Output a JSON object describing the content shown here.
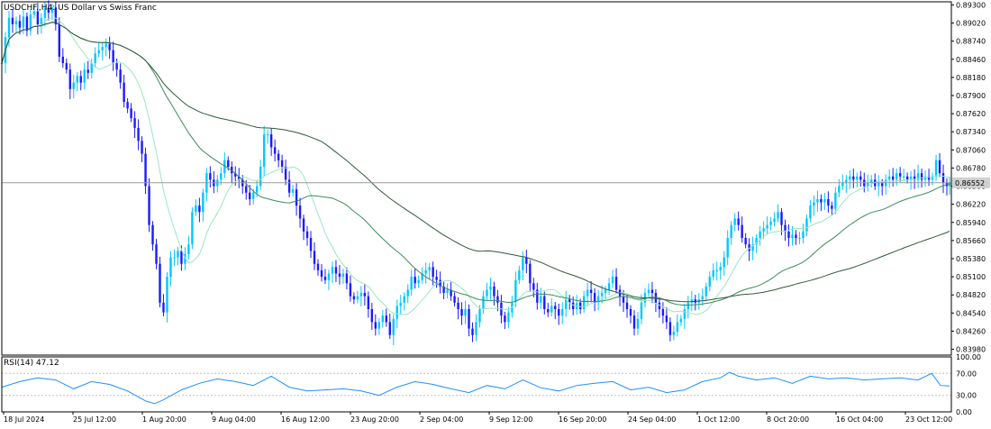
{
  "window": {
    "symbol_label": "USDCHF.,H4:  US Dollar vs Swiss Franc",
    "last_price_label": "0.86552"
  },
  "rsi_panel": {
    "label": "RSI(14) 47.12",
    "levels": [
      "100.00",
      "70.00",
      "30.00",
      "0.00"
    ]
  },
  "colors": {
    "background": "#ffffff",
    "bull_candle": "#00c8ff",
    "bear_candle": "#1a1aff",
    "ma_fast": "#9be6c0",
    "ma_mid": "#3c8c5a",
    "ma_slow": "#2f5a3c",
    "rsi_line": "#1e90ff",
    "level_line": "#c0c0c0",
    "axis": "#000000"
  },
  "chart_data": [
    {
      "type": "candlestick",
      "title": "USDCHF.,H4:  US Dollar vs Swiss Franc",
      "ylim": [
        0.8389,
        0.8932
      ],
      "yticks": [
        "0.89300",
        "0.89020",
        "0.88740",
        "0.88460",
        "0.88180",
        "0.87900",
        "0.87620",
        "0.87340",
        "0.87060",
        "0.86780",
        "0.86500",
        "0.86220",
        "0.85940",
        "0.85660",
        "0.85380",
        "0.85100",
        "0.84820",
        "0.84540",
        "0.84260",
        "0.83980"
      ],
      "xticks": [
        "18 Jul 2024",
        "25 Jul 12:00",
        "1 Aug 20:00",
        "9 Aug 04:00",
        "16 Aug 12:00",
        "23 Aug 20:00",
        "2 Sep 04:00",
        "9 Sep 12:00",
        "16 Sep 20:00",
        "24 Sep 04:00",
        "1 Oct 12:00",
        "8 Oct 20:00",
        "16 Oct 04:00",
        "23 Oct 12:00"
      ],
      "current_price": 0.86552,
      "close_series": [
        [
          0,
          0.884
        ],
        [
          4,
          0.888
        ],
        [
          8,
          0.891
        ],
        [
          12,
          0.89
        ],
        [
          16,
          0.8905
        ],
        [
          20,
          0.8895
        ],
        [
          24,
          0.8912
        ],
        [
          28,
          0.889
        ],
        [
          32,
          0.8915
        ],
        [
          36,
          0.892
        ],
        [
          40,
          0.89
        ],
        [
          44,
          0.891
        ],
        [
          48,
          0.8925
        ],
        [
          52,
          0.8918
        ],
        [
          56,
          0.8926
        ],
        [
          60,
          0.89
        ],
        [
          64,
          0.885
        ],
        [
          68,
          0.884
        ],
        [
          72,
          0.883
        ],
        [
          76,
          0.88
        ],
        [
          80,
          0.881
        ],
        [
          84,
          0.882
        ],
        [
          88,
          0.881
        ],
        [
          92,
          0.883
        ],
        [
          96,
          0.8825
        ],
        [
          100,
          0.884
        ],
        [
          104,
          0.8855
        ],
        [
          108,
          0.886
        ],
        [
          112,
          0.8865
        ],
        [
          116,
          0.887
        ],
        [
          120,
          0.886
        ],
        [
          124,
          0.884
        ],
        [
          128,
          0.883
        ],
        [
          132,
          0.881
        ],
        [
          136,
          0.878
        ],
        [
          140,
          0.877
        ],
        [
          144,
          0.8755
        ],
        [
          148,
          0.874
        ],
        [
          152,
          0.872
        ],
        [
          156,
          0.87
        ],
        [
          160,
          0.865
        ],
        [
          164,
          0.859
        ],
        [
          168,
          0.856
        ],
        [
          172,
          0.853
        ],
        [
          176,
          0.847
        ],
        [
          180,
          0.8455
        ],
        [
          184,
          0.851
        ],
        [
          188,
          0.854
        ],
        [
          192,
          0.854
        ],
        [
          196,
          0.855
        ],
        [
          200,
          0.853
        ],
        [
          204,
          0.8545
        ],
        [
          208,
          0.856
        ],
        [
          212,
          0.861
        ],
        [
          216,
          0.862
        ],
        [
          220,
          0.861
        ],
        [
          224,
          0.864
        ],
        [
          228,
          0.867
        ],
        [
          232,
          0.866
        ],
        [
          236,
          0.865
        ],
        [
          240,
          0.866
        ],
        [
          244,
          0.867
        ],
        [
          248,
          0.869
        ],
        [
          252,
          0.868
        ],
        [
          256,
          0.867
        ],
        [
          260,
          0.8665
        ],
        [
          264,
          0.866
        ],
        [
          268,
          0.865
        ],
        [
          272,
          0.864
        ],
        [
          276,
          0.863
        ],
        [
          280,
          0.864
        ],
        [
          284,
          0.865
        ],
        [
          288,
          0.868
        ],
        [
          292,
          0.873
        ],
        [
          296,
          0.873
        ],
        [
          300,
          0.871
        ],
        [
          304,
          0.87
        ],
        [
          308,
          0.869
        ],
        [
          312,
          0.868
        ],
        [
          316,
          0.866
        ],
        [
          320,
          0.864
        ],
        [
          324,
          0.8645
        ],
        [
          328,
          0.862
        ],
        [
          332,
          0.86
        ],
        [
          336,
          0.858
        ],
        [
          340,
          0.857
        ],
        [
          344,
          0.855
        ],
        [
          348,
          0.853
        ],
        [
          352,
          0.852
        ],
        [
          356,
          0.851
        ],
        [
          360,
          0.8505
        ],
        [
          364,
          0.8515
        ],
        [
          368,
          0.8525
        ],
        [
          372,
          0.8515
        ],
        [
          376,
          0.851
        ],
        [
          380,
          0.8515
        ],
        [
          384,
          0.85
        ],
        [
          388,
          0.848
        ],
        [
          392,
          0.8475
        ],
        [
          396,
          0.848
        ],
        [
          400,
          0.8485
        ],
        [
          404,
          0.848
        ],
        [
          408,
          0.846
        ],
        [
          412,
          0.844
        ],
        [
          416,
          0.843
        ],
        [
          420,
          0.844
        ],
        [
          424,
          0.845
        ],
        [
          428,
          0.844
        ],
        [
          432,
          0.842
        ],
        [
          436,
          0.8445
        ],
        [
          440,
          0.8465
        ],
        [
          444,
          0.847
        ],
        [
          448,
          0.848
        ],
        [
          452,
          0.849
        ],
        [
          456,
          0.851
        ],
        [
          460,
          0.85
        ],
        [
          464,
          0.8505
        ],
        [
          468,
          0.8515
        ],
        [
          472,
          0.852
        ],
        [
          476,
          0.8525
        ],
        [
          480,
          0.851
        ],
        [
          484,
          0.8505
        ],
        [
          488,
          0.8495
        ],
        [
          492,
          0.8485
        ],
        [
          496,
          0.849
        ],
        [
          500,
          0.848
        ],
        [
          504,
          0.847
        ],
        [
          508,
          0.846
        ],
        [
          512,
          0.845
        ],
        [
          516,
          0.846
        ],
        [
          520,
          0.843
        ],
        [
          524,
          0.842
        ],
        [
          528,
          0.844
        ],
        [
          532,
          0.846
        ],
        [
          536,
          0.848
        ],
        [
          540,
          0.849
        ],
        [
          544,
          0.8495
        ],
        [
          548,
          0.848
        ],
        [
          552,
          0.847
        ],
        [
          556,
          0.845
        ],
        [
          560,
          0.844
        ],
        [
          564,
          0.8455
        ],
        [
          568,
          0.847
        ],
        [
          572,
          0.8505
        ],
        [
          576,
          0.852
        ],
        [
          580,
          0.854
        ],
        [
          584,
          0.853
        ],
        [
          588,
          0.85
        ],
        [
          592,
          0.849
        ],
        [
          596,
          0.847
        ],
        [
          600,
          0.848
        ],
        [
          604,
          0.846
        ],
        [
          608,
          0.8455
        ],
        [
          612,
          0.8465
        ],
        [
          616,
          0.846
        ],
        [
          620,
          0.845
        ],
        [
          624,
          0.846
        ],
        [
          628,
          0.8475
        ],
        [
          632,
          0.847
        ],
        [
          636,
          0.846
        ],
        [
          640,
          0.847
        ],
        [
          644,
          0.846
        ],
        [
          648,
          0.848
        ],
        [
          652,
          0.849
        ],
        [
          656,
          0.8485
        ],
        [
          660,
          0.847
        ],
        [
          664,
          0.848
        ],
        [
          668,
          0.8485
        ],
        [
          672,
          0.849
        ],
        [
          676,
          0.85
        ],
        [
          680,
          0.851
        ],
        [
          684,
          0.849
        ],
        [
          688,
          0.848
        ],
        [
          692,
          0.847
        ],
        [
          696,
          0.846
        ],
        [
          700,
          0.845
        ],
        [
          704,
          0.843
        ],
        [
          708,
          0.8445
        ],
        [
          712,
          0.847
        ],
        [
          716,
          0.8485
        ],
        [
          720,
          0.849
        ],
        [
          724,
          0.8485
        ],
        [
          728,
          0.847
        ],
        [
          732,
          0.846
        ],
        [
          736,
          0.845
        ],
        [
          740,
          0.844
        ],
        [
          744,
          0.842
        ],
        [
          748,
          0.8425
        ],
        [
          752,
          0.844
        ],
        [
          756,
          0.8445
        ],
        [
          760,
          0.846
        ],
        [
          764,
          0.847
        ],
        [
          768,
          0.8475
        ],
        [
          772,
          0.847
        ],
        [
          776,
          0.8475
        ],
        [
          780,
          0.848
        ],
        [
          784,
          0.8495
        ],
        [
          788,
          0.851
        ],
        [
          792,
          0.852
        ],
        [
          796,
          0.852
        ],
        [
          800,
          0.8525
        ],
        [
          804,
          0.854
        ],
        [
          808,
          0.857
        ],
        [
          812,
          0.859
        ],
        [
          816,
          0.86
        ],
        [
          820,
          0.859
        ],
        [
          824,
          0.857
        ],
        [
          828,
          0.856
        ],
        [
          832,
          0.855
        ],
        [
          836,
          0.856
        ],
        [
          840,
          0.857
        ],
        [
          844,
          0.858
        ],
        [
          848,
          0.8585
        ],
        [
          852,
          0.859
        ],
        [
          856,
          0.8595
        ],
        [
          860,
          0.86
        ],
        [
          864,
          0.861
        ],
        [
          868,
          0.859
        ],
        [
          872,
          0.858
        ],
        [
          876,
          0.857
        ],
        [
          880,
          0.8575
        ],
        [
          884,
          0.857
        ],
        [
          888,
          0.857
        ],
        [
          892,
          0.858
        ],
        [
          896,
          0.86
        ],
        [
          900,
          0.862
        ],
        [
          904,
          0.8625
        ],
        [
          908,
          0.863
        ],
        [
          912,
          0.8625
        ],
        [
          916,
          0.863
        ],
        [
          920,
          0.862
        ],
        [
          924,
          0.8615
        ],
        [
          928,
          0.864
        ],
        [
          932,
          0.865
        ],
        [
          936,
          0.8655
        ],
        [
          940,
          0.866
        ],
        [
          944,
          0.8665
        ],
        [
          948,
          0.866
        ],
        [
          952,
          0.8665
        ],
        [
          956,
          0.866
        ],
        [
          960,
          0.865
        ],
        [
          964,
          0.8655
        ],
        [
          968,
          0.866
        ],
        [
          972,
          0.865
        ],
        [
          976,
          0.8655
        ],
        [
          980,
          0.865
        ],
        [
          984,
          0.866
        ],
        [
          988,
          0.8665
        ],
        [
          992,
          0.866
        ],
        [
          996,
          0.867
        ],
        [
          1000,
          0.8665
        ],
        [
          1004,
          0.8665
        ],
        [
          1008,
          0.866
        ],
        [
          1012,
          0.8665
        ],
        [
          1016,
          0.866
        ],
        [
          1020,
          0.867
        ],
        [
          1024,
          0.866
        ],
        [
          1028,
          0.8665
        ],
        [
          1032,
          0.866
        ],
        [
          1036,
          0.8665
        ],
        [
          1040,
          0.869
        ],
        [
          1044,
          0.867
        ],
        [
          1048,
          0.8655
        ],
        [
          1052,
          0.865
        ],
        [
          1055,
          0.8655
        ]
      ]
    },
    {
      "type": "line",
      "title": "RSI(14) 47.12",
      "ylim": [
        0,
        100
      ],
      "levels": [
        70,
        30
      ],
      "yticks": [
        "100.00",
        "70.00",
        "30.00",
        "0.00"
      ],
      "values": [
        [
          0,
          45
        ],
        [
          20,
          55
        ],
        [
          40,
          62
        ],
        [
          60,
          58
        ],
        [
          80,
          42
        ],
        [
          100,
          55
        ],
        [
          120,
          50
        ],
        [
          140,
          38
        ],
        [
          160,
          20
        ],
        [
          170,
          15
        ],
        [
          180,
          22
        ],
        [
          200,
          40
        ],
        [
          220,
          52
        ],
        [
          240,
          60
        ],
        [
          260,
          55
        ],
        [
          280,
          48
        ],
        [
          300,
          65
        ],
        [
          320,
          45
        ],
        [
          340,
          38
        ],
        [
          360,
          40
        ],
        [
          380,
          42
        ],
        [
          400,
          38
        ],
        [
          420,
          30
        ],
        [
          440,
          45
        ],
        [
          460,
          55
        ],
        [
          480,
          50
        ],
        [
          500,
          42
        ],
        [
          520,
          35
        ],
        [
          540,
          48
        ],
        [
          560,
          42
        ],
        [
          580,
          58
        ],
        [
          600,
          44
        ],
        [
          620,
          38
        ],
        [
          640,
          48
        ],
        [
          660,
          52
        ],
        [
          680,
          55
        ],
        [
          700,
          40
        ],
        [
          720,
          45
        ],
        [
          740,
          35
        ],
        [
          760,
          40
        ],
        [
          780,
          55
        ],
        [
          800,
          62
        ],
        [
          810,
          72
        ],
        [
          820,
          65
        ],
        [
          840,
          58
        ],
        [
          860,
          62
        ],
        [
          880,
          52
        ],
        [
          900,
          65
        ],
        [
          920,
          60
        ],
        [
          940,
          62
        ],
        [
          960,
          58
        ],
        [
          980,
          60
        ],
        [
          1000,
          62
        ],
        [
          1020,
          58
        ],
        [
          1035,
          70
        ],
        [
          1045,
          48
        ],
        [
          1055,
          47
        ]
      ]
    }
  ]
}
